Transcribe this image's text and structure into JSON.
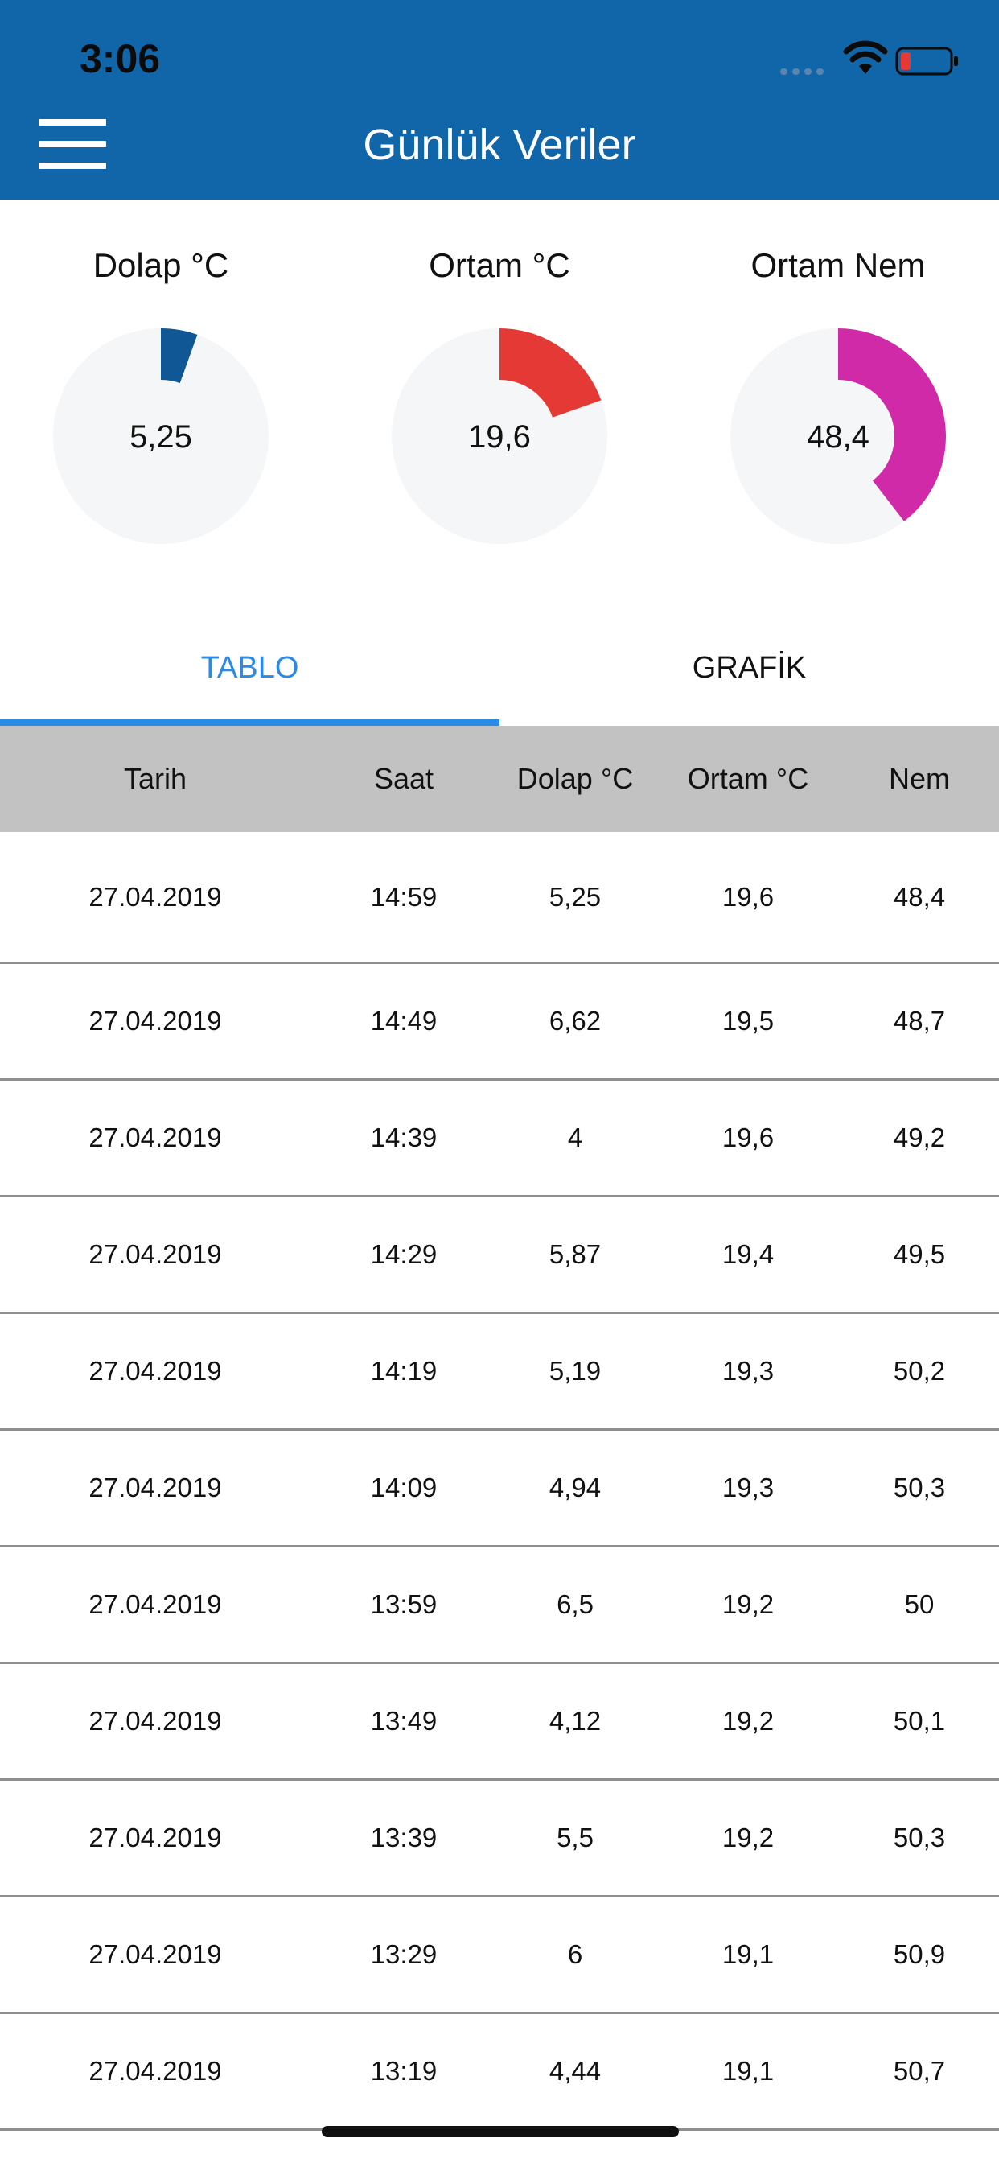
{
  "status_bar": {
    "time": "3:06",
    "icons": [
      "signal-dots-icon",
      "wifi-icon",
      "battery-low-icon"
    ],
    "battery_color": "#e53935"
  },
  "header": {
    "title": "Günlük Veriler",
    "menu_icon": "hamburger-menu-icon",
    "background_color": "#1166aa"
  },
  "gauges": [
    {
      "title": "Dolap °C",
      "value": "5,25",
      "fill_fraction": 0.055,
      "color": "#0f5795"
    },
    {
      "title": "Ortam °C",
      "value": "19,6",
      "fill_fraction": 0.196,
      "color": "#e53935"
    },
    {
      "title": "Ortam Nem",
      "value": "48,4",
      "fill_fraction": 0.395,
      "color": "#d02aa8"
    }
  ],
  "tabs": [
    {
      "label": "TABLO",
      "active": true
    },
    {
      "label": "GRAFİK",
      "active": false
    }
  ],
  "accent_color": "#2a8be6",
  "table": {
    "headers": [
      "Tarih",
      "Saat",
      "Dolap °C",
      "Ortam °C",
      "Nem"
    ],
    "rows": [
      [
        "27.04.2019",
        "14:59",
        "5,25",
        "19,6",
        "48,4"
      ],
      [
        "27.04.2019",
        "14:49",
        "6,62",
        "19,5",
        "48,7"
      ],
      [
        "27.04.2019",
        "14:39",
        "4",
        "19,6",
        "49,2"
      ],
      [
        "27.04.2019",
        "14:29",
        "5,87",
        "19,4",
        "49,5"
      ],
      [
        "27.04.2019",
        "14:19",
        "5,19",
        "19,3",
        "50,2"
      ],
      [
        "27.04.2019",
        "14:09",
        "4,94",
        "19,3",
        "50,3"
      ],
      [
        "27.04.2019",
        "13:59",
        "6,5",
        "19,2",
        "50"
      ],
      [
        "27.04.2019",
        "13:49",
        "4,12",
        "19,2",
        "50,1"
      ],
      [
        "27.04.2019",
        "13:39",
        "5,5",
        "19,2",
        "50,3"
      ],
      [
        "27.04.2019",
        "13:29",
        "6",
        "19,1",
        "50,9"
      ],
      [
        "27.04.2019",
        "13:19",
        "4,44",
        "19,1",
        "50,7"
      ]
    ]
  }
}
